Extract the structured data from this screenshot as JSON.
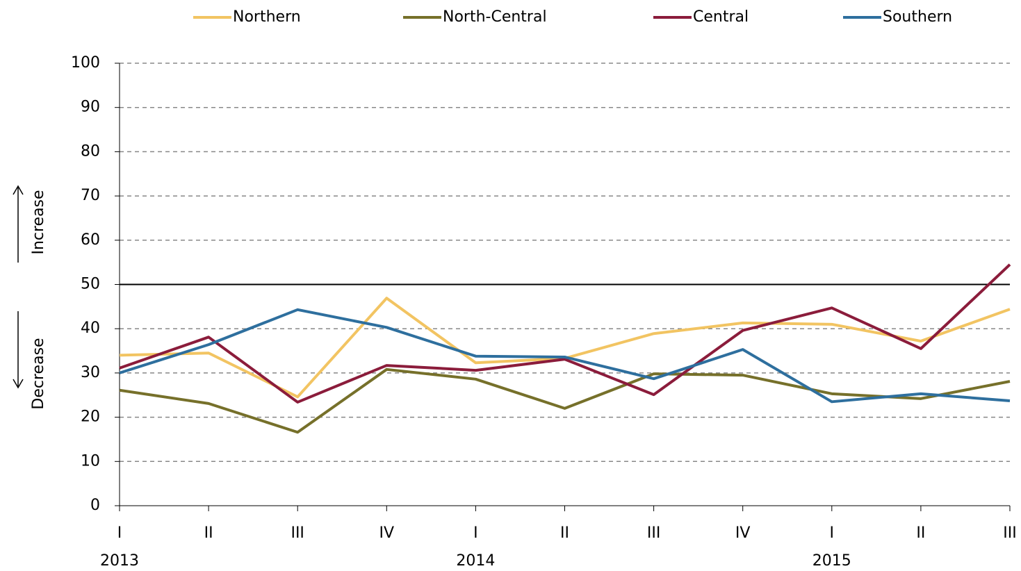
{
  "chart_data": {
    "type": "line",
    "categories": [
      "I",
      "II",
      "III",
      "IV",
      "I",
      "II",
      "III",
      "IV",
      "I",
      "II",
      "III"
    ],
    "category_groups": [
      "2013",
      null,
      null,
      null,
      "2014",
      null,
      null,
      null,
      "2015",
      null,
      null
    ],
    "series": [
      {
        "name": "Northern",
        "color": "#f2c462",
        "values": [
          34,
          34.5,
          24.6,
          46.9,
          32.3,
          33.3,
          38.9,
          41.3,
          41,
          37.2,
          44.4
        ]
      },
      {
        "name": "North-Central",
        "color": "#76702a",
        "values": [
          26.1,
          23.1,
          16.6,
          30.8,
          28.6,
          22,
          29.8,
          29.5,
          25.3,
          24.2,
          28.1
        ]
      },
      {
        "name": "Central",
        "color": "#8b1c3b",
        "values": [
          31.1,
          38.1,
          23.4,
          31.7,
          30.6,
          33.1,
          25.1,
          39.6,
          44.7,
          35.5,
          54.5
        ]
      },
      {
        "name": "Southern",
        "color": "#2e6f9e",
        "values": [
          30,
          36.4,
          44.3,
          40.3,
          33.8,
          33.6,
          28.7,
          35.3,
          23.5,
          25.3,
          23.7
        ]
      }
    ],
    "ylim": [
      0,
      100
    ],
    "yticks": [
      0,
      10,
      20,
      30,
      40,
      50,
      60,
      70,
      80,
      90,
      100
    ],
    "grid": true,
    "reference_line": 50,
    "y_label_up": "Increase",
    "y_label_down": "Decrease",
    "legend": "top"
  }
}
